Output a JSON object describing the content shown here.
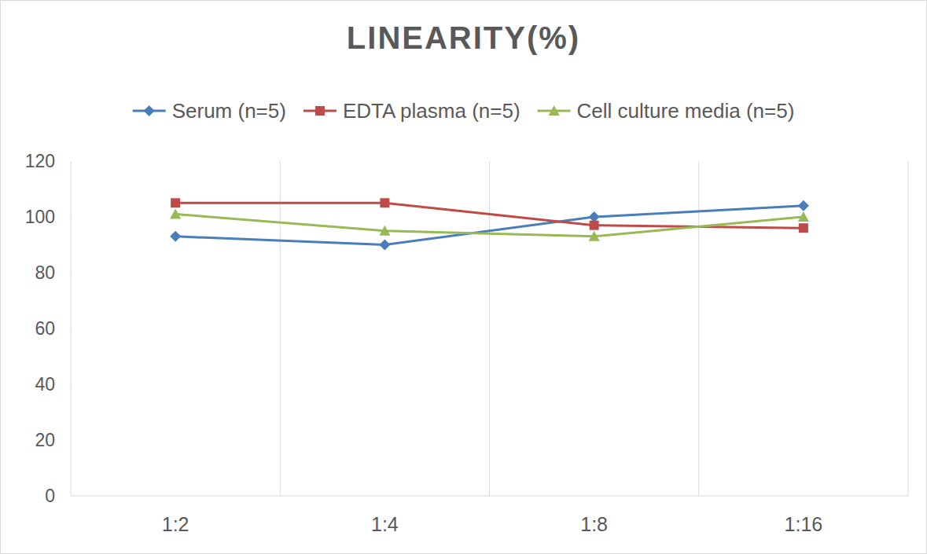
{
  "chart_data": {
    "type": "line",
    "title": "LINEARITY(%)",
    "categories": [
      "1:2",
      "1:4",
      "1:8",
      "1:16"
    ],
    "series": [
      {
        "name": "Serum (n=5)",
        "color": "#4a7ebb",
        "marker": "diamond",
        "values": [
          93,
          90,
          100,
          104
        ]
      },
      {
        "name": "EDTA plasma (n=5)",
        "color": "#be4b48",
        "marker": "square",
        "values": [
          105,
          105,
          97,
          96
        ]
      },
      {
        "name": "Cell culture media (n=5)",
        "color": "#98b954",
        "marker": "triangle",
        "values": [
          101,
          95,
          93,
          100
        ]
      }
    ],
    "ylim": [
      0,
      120
    ],
    "yticks": [
      0,
      20,
      40,
      60,
      80,
      100,
      120
    ],
    "grid": true,
    "legend": "top"
  }
}
